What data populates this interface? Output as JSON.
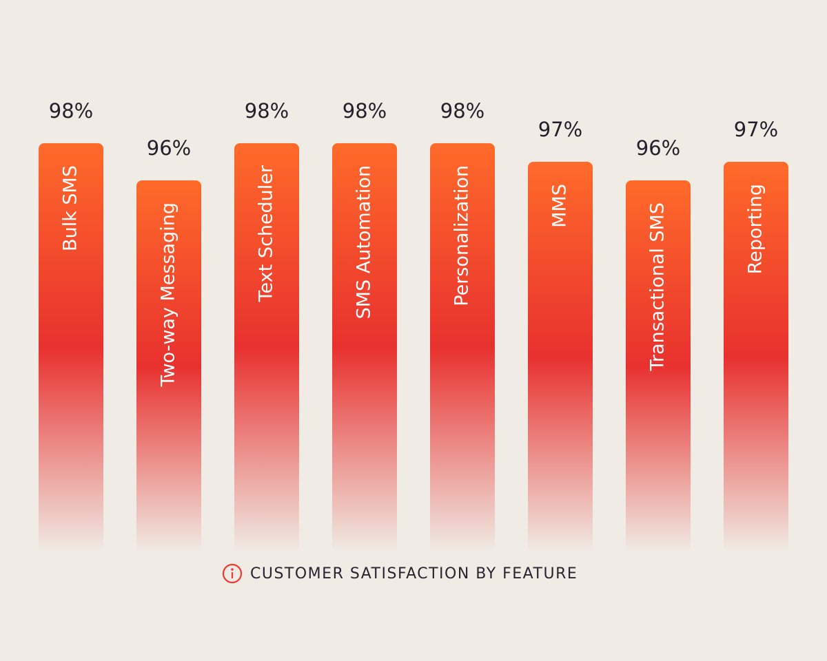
{
  "chart_data": {
    "type": "bar",
    "title": "CUSTOMER SATISFACTION BY FEATURE",
    "categories": [
      "Bulk SMS",
      "Two-way Messaging",
      "Text Scheduler",
      "SMS Automation",
      "Personalization",
      "MMS",
      "Transactional SMS",
      "Reporting"
    ],
    "values": [
      98,
      96,
      98,
      98,
      98,
      97,
      96,
      97
    ],
    "value_labels": [
      "98%",
      "96%",
      "98%",
      "98%",
      "98%",
      "97%",
      "96%",
      "97%"
    ],
    "color": "#e8312f",
    "ylim": [
      76,
      100
    ]
  }
}
